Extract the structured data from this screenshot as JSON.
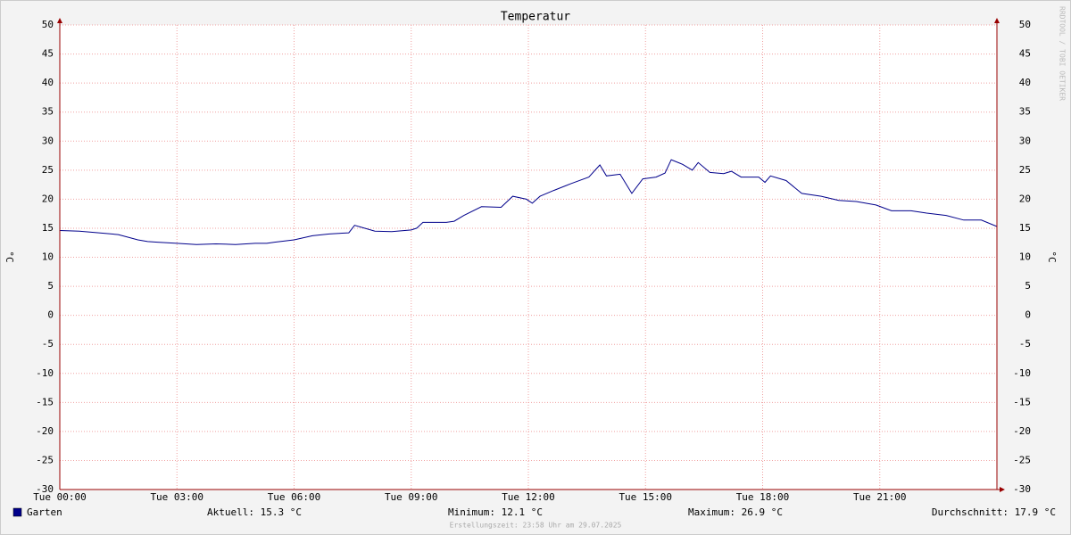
{
  "chart_data": {
    "type": "line",
    "title": "Temperatur",
    "y_label": "°C",
    "x": [
      0,
      0.5,
      1,
      1.5,
      2,
      2.25,
      2.5,
      3,
      3.5,
      4,
      4.5,
      5,
      5.3,
      5.5,
      6,
      6.47,
      6.9,
      7.4,
      7.55,
      8.07,
      8.5,
      9.0,
      9.14,
      9.3,
      9.9,
      10.1,
      10.35,
      10.8,
      11.3,
      11.6,
      11.95,
      12.1,
      12.3,
      12.65,
      13.1,
      13.55,
      13.83,
      14.0,
      14.35,
      14.65,
      14.93,
      15.27,
      15.5,
      15.66,
      15.95,
      16.2,
      16.35,
      16.65,
      17.0,
      17.2,
      17.45,
      17.9,
      18.06,
      18.2,
      18.6,
      19.0,
      19.5,
      19.95,
      20.4,
      20.9,
      21.3,
      21.8,
      22.2,
      22.7,
      23.15,
      23.6,
      24
    ],
    "series": [
      {
        "name": "Garten",
        "color": "#00008b",
        "values": [
          14.6,
          14.5,
          14.2,
          13.9,
          13.0,
          12.7,
          12.6,
          12.4,
          12.2,
          12.3,
          12.2,
          12.4,
          12.4,
          12.6,
          13.0,
          13.7,
          14.0,
          14.2,
          15.5,
          14.5,
          14.4,
          14.7,
          15.0,
          16.0,
          16.0,
          16.2,
          17.2,
          18.7,
          18.6,
          20.5,
          20.0,
          19.3,
          20.5,
          21.5,
          22.7,
          23.8,
          25.9,
          24.0,
          24.3,
          21.0,
          23.5,
          23.8,
          24.5,
          26.8,
          26.0,
          25.0,
          26.3,
          24.6,
          24.4,
          24.8,
          23.8,
          23.8,
          22.9,
          24.0,
          23.2,
          21.0,
          20.5,
          19.8,
          19.6,
          19.0,
          18.0,
          18.0,
          17.6,
          17.2,
          16.4,
          16.4,
          15.3
        ]
      }
    ],
    "xlim": [
      0,
      24
    ],
    "xticks": [
      {
        "value": 0,
        "label": "Tue 00:00"
      },
      {
        "value": 3,
        "label": "Tue 03:00"
      },
      {
        "value": 6,
        "label": "Tue 06:00"
      },
      {
        "value": 9,
        "label": "Tue 09:00"
      },
      {
        "value": 12,
        "label": "Tue 12:00"
      },
      {
        "value": 15,
        "label": "Tue 15:00"
      },
      {
        "value": 18,
        "label": "Tue 18:00"
      },
      {
        "value": 21,
        "label": "Tue 21:00"
      }
    ],
    "ylim": [
      -30,
      50
    ],
    "yticks": [
      -30,
      -25,
      -20,
      -15,
      -10,
      -5,
      0,
      5,
      10,
      15,
      20,
      25,
      30,
      35,
      40,
      45,
      50
    ],
    "grid": true,
    "stats": [
      "Aktuell: 15.3 °C",
      "Minimum: 12.1 °C",
      "Maximum: 26.9 °C",
      "Durchschnitt: 17.9 °C"
    ],
    "footer": "Erstellungszeit: 23:58 Uhr am 29.07.2025",
    "watermark": "RRDTOOL / TOBI OETIKER"
  }
}
